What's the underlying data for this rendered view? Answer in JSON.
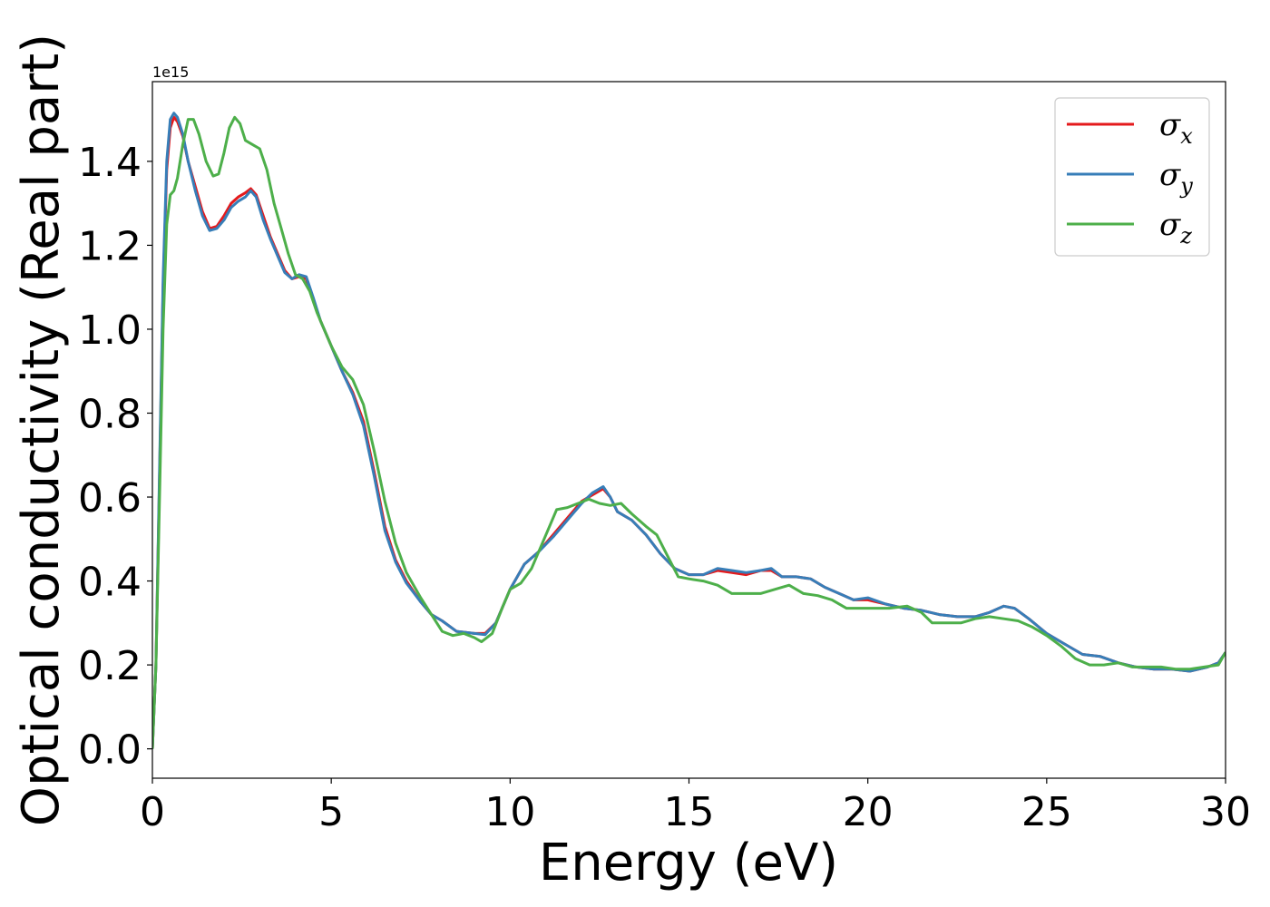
{
  "chart_data": {
    "type": "line",
    "xlabel": "Energy (eV)",
    "ylabel": "Optical conductivity (Real part)",
    "y_offset_label": "1e15",
    "xlim": [
      0,
      30
    ],
    "ylim": [
      -0.07,
      1.59
    ],
    "x_ticks": [
      0,
      5,
      10,
      15,
      20,
      25,
      30
    ],
    "x_tick_labels": [
      "0",
      "5",
      "10",
      "15",
      "20",
      "25",
      "30"
    ],
    "y_ticks": [
      0.0,
      0.2,
      0.4,
      0.6,
      0.8,
      1.0,
      1.2,
      1.4
    ],
    "y_tick_labels": [
      "0.0",
      "0.2",
      "0.4",
      "0.6",
      "0.8",
      "1.0",
      "1.2",
      "1.4"
    ],
    "grid": false,
    "legend_position": "top-right",
    "colors": {
      "x": "#e41a1c",
      "y": "#377eb8",
      "z": "#4daf4a"
    },
    "legend": [
      {
        "sym": "σ",
        "sub": "x",
        "key": "x"
      },
      {
        "sym": "σ",
        "sub": "y",
        "key": "y"
      },
      {
        "sym": "σ",
        "sub": "z",
        "key": "z"
      }
    ],
    "series": [
      {
        "key": "x",
        "points": [
          [
            0,
            0
          ],
          [
            0.1,
            0.2
          ],
          [
            0.2,
            0.65
          ],
          [
            0.3,
            1.1
          ],
          [
            0.4,
            1.38
          ],
          [
            0.5,
            1.48
          ],
          [
            0.6,
            1.505
          ],
          [
            0.7,
            1.495
          ],
          [
            0.85,
            1.46
          ],
          [
            1.0,
            1.4
          ],
          [
            1.2,
            1.34
          ],
          [
            1.4,
            1.28
          ],
          [
            1.6,
            1.24
          ],
          [
            1.8,
            1.245
          ],
          [
            2.0,
            1.27
          ],
          [
            2.2,
            1.3
          ],
          [
            2.4,
            1.315
          ],
          [
            2.6,
            1.325
          ],
          [
            2.75,
            1.335
          ],
          [
            2.9,
            1.32
          ],
          [
            3.1,
            1.27
          ],
          [
            3.3,
            1.22
          ],
          [
            3.5,
            1.18
          ],
          [
            3.7,
            1.14
          ],
          [
            3.9,
            1.12
          ],
          [
            4.1,
            1.125
          ],
          [
            4.3,
            1.12
          ],
          [
            4.5,
            1.07
          ],
          [
            4.7,
            1.02
          ],
          [
            5.0,
            0.96
          ],
          [
            5.3,
            0.9
          ],
          [
            5.6,
            0.85
          ],
          [
            5.9,
            0.78
          ],
          [
            6.2,
            0.66
          ],
          [
            6.5,
            0.53
          ],
          [
            6.8,
            0.45
          ],
          [
            7.1,
            0.4
          ],
          [
            7.5,
            0.35
          ],
          [
            7.8,
            0.32
          ],
          [
            8.1,
            0.305
          ],
          [
            8.5,
            0.28
          ],
          [
            9.0,
            0.275
          ],
          [
            9.3,
            0.275
          ],
          [
            9.6,
            0.3
          ],
          [
            10.0,
            0.38
          ],
          [
            10.4,
            0.44
          ],
          [
            10.8,
            0.47
          ],
          [
            11.2,
            0.51
          ],
          [
            11.6,
            0.55
          ],
          [
            12.0,
            0.59
          ],
          [
            12.3,
            0.605
          ],
          [
            12.6,
            0.62
          ],
          [
            12.8,
            0.6
          ],
          [
            13.0,
            0.565
          ],
          [
            13.4,
            0.545
          ],
          [
            13.8,
            0.51
          ],
          [
            14.2,
            0.465
          ],
          [
            14.6,
            0.43
          ],
          [
            15.0,
            0.415
          ],
          [
            15.4,
            0.415
          ],
          [
            15.8,
            0.425
          ],
          [
            16.2,
            0.42
          ],
          [
            16.6,
            0.415
          ],
          [
            17.0,
            0.425
          ],
          [
            17.3,
            0.425
          ],
          [
            17.6,
            0.41
          ],
          [
            18.0,
            0.41
          ],
          [
            18.4,
            0.405
          ],
          [
            18.8,
            0.385
          ],
          [
            19.2,
            0.37
          ],
          [
            19.6,
            0.355
          ],
          [
            20.0,
            0.355
          ],
          [
            20.5,
            0.345
          ],
          [
            21.0,
            0.335
          ],
          [
            21.5,
            0.33
          ],
          [
            22.0,
            0.32
          ],
          [
            22.5,
            0.315
          ],
          [
            23.0,
            0.315
          ],
          [
            23.4,
            0.325
          ],
          [
            23.8,
            0.34
          ],
          [
            24.1,
            0.335
          ],
          [
            24.5,
            0.31
          ],
          [
            25.0,
            0.275
          ],
          [
            25.5,
            0.25
          ],
          [
            26.0,
            0.225
          ],
          [
            26.5,
            0.22
          ],
          [
            27.0,
            0.205
          ],
          [
            27.5,
            0.195
          ],
          [
            28.0,
            0.19
          ],
          [
            28.5,
            0.19
          ],
          [
            29.0,
            0.185
          ],
          [
            29.5,
            0.195
          ],
          [
            29.8,
            0.205
          ],
          [
            30.0,
            0.23
          ]
        ]
      },
      {
        "key": "y",
        "points": [
          [
            0,
            0
          ],
          [
            0.1,
            0.2
          ],
          [
            0.2,
            0.67
          ],
          [
            0.3,
            1.12
          ],
          [
            0.4,
            1.4
          ],
          [
            0.5,
            1.5
          ],
          [
            0.6,
            1.515
          ],
          [
            0.7,
            1.505
          ],
          [
            0.85,
            1.465
          ],
          [
            1.0,
            1.4
          ],
          [
            1.2,
            1.33
          ],
          [
            1.4,
            1.27
          ],
          [
            1.6,
            1.235
          ],
          [
            1.8,
            1.24
          ],
          [
            2.0,
            1.26
          ],
          [
            2.2,
            1.29
          ],
          [
            2.4,
            1.305
          ],
          [
            2.6,
            1.315
          ],
          [
            2.75,
            1.33
          ],
          [
            2.9,
            1.315
          ],
          [
            3.1,
            1.26
          ],
          [
            3.3,
            1.215
          ],
          [
            3.5,
            1.175
          ],
          [
            3.7,
            1.135
          ],
          [
            3.9,
            1.12
          ],
          [
            4.1,
            1.13
          ],
          [
            4.3,
            1.125
          ],
          [
            4.5,
            1.075
          ],
          [
            4.7,
            1.02
          ],
          [
            5.0,
            0.96
          ],
          [
            5.3,
            0.9
          ],
          [
            5.6,
            0.845
          ],
          [
            5.9,
            0.77
          ],
          [
            6.2,
            0.65
          ],
          [
            6.5,
            0.52
          ],
          [
            6.8,
            0.445
          ],
          [
            7.1,
            0.395
          ],
          [
            7.5,
            0.35
          ],
          [
            7.8,
            0.32
          ],
          [
            8.1,
            0.305
          ],
          [
            8.5,
            0.28
          ],
          [
            9.0,
            0.275
          ],
          [
            9.3,
            0.272
          ],
          [
            9.6,
            0.3
          ],
          [
            10.0,
            0.38
          ],
          [
            10.4,
            0.44
          ],
          [
            10.8,
            0.47
          ],
          [
            11.2,
            0.505
          ],
          [
            11.6,
            0.545
          ],
          [
            12.0,
            0.585
          ],
          [
            12.3,
            0.61
          ],
          [
            12.6,
            0.625
          ],
          [
            12.8,
            0.6
          ],
          [
            13.0,
            0.565
          ],
          [
            13.4,
            0.545
          ],
          [
            13.8,
            0.51
          ],
          [
            14.2,
            0.465
          ],
          [
            14.6,
            0.43
          ],
          [
            15.0,
            0.415
          ],
          [
            15.4,
            0.415
          ],
          [
            15.8,
            0.43
          ],
          [
            16.2,
            0.425
          ],
          [
            16.6,
            0.42
          ],
          [
            17.0,
            0.425
          ],
          [
            17.3,
            0.43
          ],
          [
            17.6,
            0.41
          ],
          [
            18.0,
            0.41
          ],
          [
            18.4,
            0.405
          ],
          [
            18.8,
            0.385
          ],
          [
            19.2,
            0.37
          ],
          [
            19.6,
            0.355
          ],
          [
            20.0,
            0.36
          ],
          [
            20.5,
            0.345
          ],
          [
            21.0,
            0.335
          ],
          [
            21.5,
            0.33
          ],
          [
            22.0,
            0.32
          ],
          [
            22.5,
            0.315
          ],
          [
            23.0,
            0.315
          ],
          [
            23.4,
            0.325
          ],
          [
            23.8,
            0.34
          ],
          [
            24.1,
            0.335
          ],
          [
            24.5,
            0.31
          ],
          [
            25.0,
            0.275
          ],
          [
            25.5,
            0.25
          ],
          [
            26.0,
            0.225
          ],
          [
            26.5,
            0.22
          ],
          [
            27.0,
            0.205
          ],
          [
            27.5,
            0.195
          ],
          [
            28.0,
            0.19
          ],
          [
            28.5,
            0.19
          ],
          [
            29.0,
            0.185
          ],
          [
            29.5,
            0.195
          ],
          [
            29.8,
            0.205
          ],
          [
            30.0,
            0.23
          ]
        ]
      },
      {
        "key": "z",
        "points": [
          [
            0,
            0
          ],
          [
            0.1,
            0.2
          ],
          [
            0.2,
            0.6
          ],
          [
            0.3,
            1.0
          ],
          [
            0.4,
            1.25
          ],
          [
            0.5,
            1.32
          ],
          [
            0.6,
            1.33
          ],
          [
            0.7,
            1.36
          ],
          [
            0.85,
            1.44
          ],
          [
            1.0,
            1.5
          ],
          [
            1.15,
            1.5
          ],
          [
            1.3,
            1.465
          ],
          [
            1.5,
            1.4
          ],
          [
            1.7,
            1.365
          ],
          [
            1.85,
            1.37
          ],
          [
            2.0,
            1.42
          ],
          [
            2.15,
            1.48
          ],
          [
            2.3,
            1.505
          ],
          [
            2.45,
            1.49
          ],
          [
            2.6,
            1.45
          ],
          [
            2.8,
            1.44
          ],
          [
            3.0,
            1.43
          ],
          [
            3.2,
            1.38
          ],
          [
            3.4,
            1.3
          ],
          [
            3.6,
            1.24
          ],
          [
            3.8,
            1.18
          ],
          [
            4.0,
            1.13
          ],
          [
            4.2,
            1.12
          ],
          [
            4.4,
            1.09
          ],
          [
            4.6,
            1.04
          ],
          [
            5.0,
            0.96
          ],
          [
            5.3,
            0.91
          ],
          [
            5.6,
            0.88
          ],
          [
            5.9,
            0.82
          ],
          [
            6.2,
            0.71
          ],
          [
            6.5,
            0.59
          ],
          [
            6.8,
            0.49
          ],
          [
            7.1,
            0.42
          ],
          [
            7.5,
            0.36
          ],
          [
            7.8,
            0.32
          ],
          [
            8.1,
            0.28
          ],
          [
            8.4,
            0.27
          ],
          [
            8.7,
            0.275
          ],
          [
            9.0,
            0.265
          ],
          [
            9.2,
            0.255
          ],
          [
            9.5,
            0.275
          ],
          [
            9.8,
            0.34
          ],
          [
            10.0,
            0.38
          ],
          [
            10.3,
            0.395
          ],
          [
            10.6,
            0.43
          ],
          [
            11.0,
            0.51
          ],
          [
            11.3,
            0.57
          ],
          [
            11.6,
            0.575
          ],
          [
            11.9,
            0.585
          ],
          [
            12.2,
            0.595
          ],
          [
            12.5,
            0.585
          ],
          [
            12.8,
            0.58
          ],
          [
            13.1,
            0.585
          ],
          [
            13.4,
            0.56
          ],
          [
            13.8,
            0.53
          ],
          [
            14.1,
            0.51
          ],
          [
            14.4,
            0.46
          ],
          [
            14.7,
            0.41
          ],
          [
            15.0,
            0.405
          ],
          [
            15.4,
            0.4
          ],
          [
            15.8,
            0.39
          ],
          [
            16.2,
            0.37
          ],
          [
            16.6,
            0.37
          ],
          [
            17.0,
            0.37
          ],
          [
            17.4,
            0.38
          ],
          [
            17.8,
            0.39
          ],
          [
            18.2,
            0.37
          ],
          [
            18.6,
            0.365
          ],
          [
            19.0,
            0.355
          ],
          [
            19.4,
            0.335
          ],
          [
            19.8,
            0.335
          ],
          [
            20.2,
            0.335
          ],
          [
            20.6,
            0.335
          ],
          [
            21.1,
            0.34
          ],
          [
            21.5,
            0.325
          ],
          [
            21.8,
            0.3
          ],
          [
            22.2,
            0.3
          ],
          [
            22.6,
            0.3
          ],
          [
            23.0,
            0.31
          ],
          [
            23.4,
            0.315
          ],
          [
            23.8,
            0.31
          ],
          [
            24.2,
            0.305
          ],
          [
            24.6,
            0.29
          ],
          [
            25.0,
            0.27
          ],
          [
            25.4,
            0.245
          ],
          [
            25.8,
            0.215
          ],
          [
            26.2,
            0.2
          ],
          [
            26.6,
            0.2
          ],
          [
            27.0,
            0.205
          ],
          [
            27.4,
            0.195
          ],
          [
            27.8,
            0.195
          ],
          [
            28.2,
            0.195
          ],
          [
            28.6,
            0.19
          ],
          [
            29.0,
            0.19
          ],
          [
            29.4,
            0.195
          ],
          [
            29.8,
            0.2
          ],
          [
            30.0,
            0.23
          ]
        ]
      }
    ]
  }
}
